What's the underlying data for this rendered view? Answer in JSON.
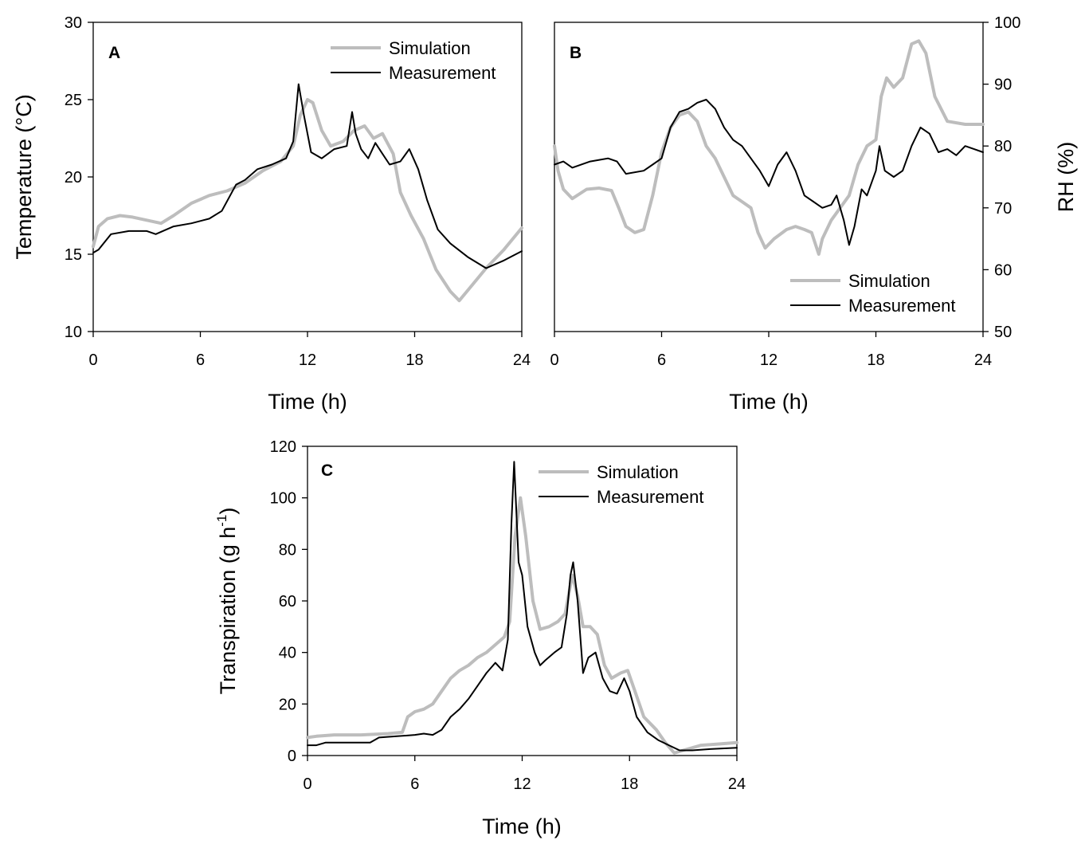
{
  "colors": {
    "simulation": "#bdbdbd",
    "measurement": "#000000"
  },
  "chart_data": [
    {
      "panel": "A",
      "type": "line",
      "xlabel": "Time (h)",
      "ylabel": "Temperature (°C)",
      "y_axis_side": "left",
      "xlim": [
        0,
        24
      ],
      "ylim": [
        10,
        30
      ],
      "xticks": [
        0,
        6,
        12,
        18,
        24
      ],
      "yticks": [
        10,
        15,
        20,
        25,
        30
      ],
      "legend_position": "top-right",
      "series": [
        {
          "name": "Simulation",
          "x": [
            0,
            0.3,
            0.8,
            1.5,
            2.2,
            3,
            3.8,
            4.5,
            5.5,
            6.5,
            7.5,
            8.5,
            9.5,
            10.5,
            11.2,
            11.6,
            12,
            12.3,
            12.8,
            13.3,
            14,
            14.6,
            15.2,
            15.7,
            16.2,
            16.8,
            17.2,
            17.8,
            18.5,
            19.2,
            20,
            20.5,
            21,
            22,
            23,
            24
          ],
          "y": [
            15.5,
            16.8,
            17.3,
            17.5,
            17.4,
            17.2,
            17.0,
            17.5,
            18.3,
            18.8,
            19.1,
            19.6,
            20.4,
            21.0,
            22.0,
            24.0,
            25.0,
            24.8,
            23.0,
            22.0,
            22.3,
            23.0,
            23.3,
            22.5,
            22.8,
            21.5,
            19.0,
            17.5,
            16.0,
            14.0,
            12.6,
            12.0,
            12.7,
            14.1,
            15.3,
            16.7
          ]
        },
        {
          "name": "Measurement",
          "x": [
            0,
            0.3,
            1,
            2,
            3,
            3.5,
            4.5,
            5.5,
            6.5,
            7.2,
            8,
            8.5,
            9.2,
            10,
            10.8,
            11.2,
            11.5,
            11.8,
            12.2,
            12.8,
            13.5,
            14.2,
            14.5,
            14.7,
            15,
            15.4,
            15.8,
            16.2,
            16.6,
            17.2,
            17.7,
            18.2,
            18.7,
            19.3,
            20,
            21,
            22,
            23,
            24
          ],
          "y": [
            15.1,
            15.3,
            16.3,
            16.5,
            16.5,
            16.3,
            16.8,
            17.0,
            17.3,
            17.8,
            19.5,
            19.8,
            20.5,
            20.8,
            21.2,
            22.3,
            26.0,
            24.0,
            21.6,
            21.2,
            21.8,
            22.0,
            24.2,
            22.8,
            21.8,
            21.2,
            22.2,
            21.5,
            20.8,
            21.0,
            21.8,
            20.5,
            18.5,
            16.6,
            15.7,
            14.8,
            14.1,
            14.6,
            15.2
          ]
        }
      ]
    },
    {
      "panel": "B",
      "type": "line",
      "xlabel": "Time (h)",
      "ylabel": "RH (%)",
      "y_axis_side": "right",
      "xlim": [
        0,
        24
      ],
      "ylim": [
        50,
        100
      ],
      "xticks": [
        0,
        6,
        12,
        18,
        24
      ],
      "yticks": [
        50,
        60,
        70,
        80,
        90,
        100
      ],
      "legend_position": "bottom-right",
      "series": [
        {
          "name": "Simulation",
          "x": [
            0,
            0.2,
            0.5,
            1,
            1.8,
            2.5,
            3.2,
            3.6,
            4,
            4.5,
            5,
            5.5,
            6,
            6.5,
            7,
            7.5,
            8,
            8.5,
            9,
            9.5,
            10,
            10.5,
            11,
            11.4,
            11.8,
            12.3,
            13,
            13.5,
            14,
            14.4,
            14.8,
            15,
            15.5,
            16,
            16.5,
            17,
            17.5,
            18,
            18.3,
            18.6,
            19,
            19.5,
            20,
            20.4,
            20.8,
            21.3,
            22,
            23,
            24
          ],
          "y": [
            80,
            76,
            73,
            71.5,
            73,
            73.2,
            72.8,
            70,
            67,
            66,
            66.5,
            72,
            79,
            83,
            85,
            85.5,
            84,
            80,
            78,
            75,
            72,
            71,
            70,
            66,
            63.5,
            65,
            66.5,
            67,
            66.5,
            66,
            62.5,
            65,
            68,
            70,
            72,
            77,
            80,
            81,
            88,
            91,
            89.5,
            91,
            96.5,
            97,
            95,
            88,
            84,
            83.5,
            83.5
          ]
        },
        {
          "name": "Measurement",
          "x": [
            0,
            0.5,
            1,
            2,
            3,
            3.5,
            4,
            5,
            5.5,
            6,
            6.5,
            7,
            7.5,
            8,
            8.5,
            9,
            9.5,
            10,
            10.5,
            11,
            11.5,
            12,
            12.5,
            13,
            13.5,
            14,
            14.5,
            15,
            15.5,
            15.8,
            16.2,
            16.5,
            16.8,
            17.2,
            17.5,
            18,
            18.2,
            18.5,
            19,
            19.5,
            20,
            20.5,
            21,
            21.5,
            22,
            22.5,
            23,
            23.5,
            24
          ],
          "y": [
            77,
            77.5,
            76.5,
            77.5,
            78,
            77.5,
            75.5,
            76,
            77,
            78,
            83,
            85.5,
            86,
            87,
            87.5,
            86,
            83,
            81,
            80,
            78,
            76,
            73.5,
            77,
            79,
            76,
            72,
            71,
            70,
            70.5,
            72,
            68,
            64,
            67,
            73,
            72,
            76,
            80,
            76,
            75,
            76,
            80,
            83,
            82,
            79,
            79.5,
            78.5,
            80,
            79.5,
            79
          ]
        }
      ]
    },
    {
      "panel": "C",
      "type": "line",
      "xlabel": "Time (h)",
      "ylabel": "Transpiration (g h",
      "ylabel_superscript": "-1",
      "ylabel_suffix": ")",
      "y_axis_side": "left",
      "xlim": [
        0,
        24
      ],
      "ylim": [
        0,
        120
      ],
      "xticks": [
        0,
        6,
        12,
        18,
        24
      ],
      "yticks": [
        0,
        20,
        40,
        60,
        80,
        100,
        120
      ],
      "legend_position": "top-right",
      "series": [
        {
          "name": "Simulation",
          "x": [
            0,
            0.5,
            1.5,
            3,
            4.5,
            5.3,
            5.6,
            6,
            6.5,
            7,
            7.5,
            8,
            8.5,
            9,
            9.5,
            10,
            10.5,
            11,
            11.3,
            11.6,
            11.9,
            12.2,
            12.6,
            13,
            13.5,
            14,
            14.4,
            14.8,
            15.1,
            15.4,
            15.8,
            16.2,
            16.6,
            17,
            17.5,
            17.9,
            18.3,
            18.8,
            19.5,
            20,
            20.5,
            21,
            22,
            23,
            24
          ],
          "y": [
            7,
            7.5,
            8,
            8,
            8.5,
            9,
            15,
            17,
            18,
            20,
            25,
            30,
            33,
            35,
            38,
            40,
            43,
            46,
            52,
            85,
            100,
            85,
            60,
            49,
            50,
            52,
            55,
            70,
            62,
            50,
            50,
            47,
            35,
            30,
            32,
            33,
            25,
            15,
            10,
            5,
            1,
            2,
            4,
            4.5,
            5
          ]
        },
        {
          "name": "Measurement",
          "x": [
            0,
            0.5,
            1,
            2,
            3,
            3.5,
            4,
            5,
            6,
            6.5,
            7,
            7.5,
            8,
            8.5,
            9,
            9.5,
            10,
            10.5,
            10.9,
            11.2,
            11.4,
            11.55,
            11.8,
            12,
            12.3,
            12.7,
            13,
            13.3,
            13.8,
            14.2,
            14.5,
            14.7,
            14.85,
            15.1,
            15.4,
            15.7,
            16.1,
            16.5,
            16.9,
            17.3,
            17.7,
            18,
            18.4,
            19,
            19.6,
            20.2,
            20.8,
            21.5,
            22.5,
            24
          ],
          "y": [
            4,
            4,
            5,
            5,
            5,
            5,
            7,
            7.5,
            8,
            8.5,
            8,
            10,
            15,
            18,
            22,
            27,
            32,
            36,
            33,
            45,
            90,
            114,
            75,
            70,
            50,
            40,
            35,
            37,
            40,
            42,
            55,
            70,
            75,
            60,
            32,
            38,
            40,
            30,
            25,
            24,
            30,
            25,
            15,
            9,
            6,
            4,
            2,
            2,
            2.5,
            3
          ]
        }
      ]
    }
  ]
}
